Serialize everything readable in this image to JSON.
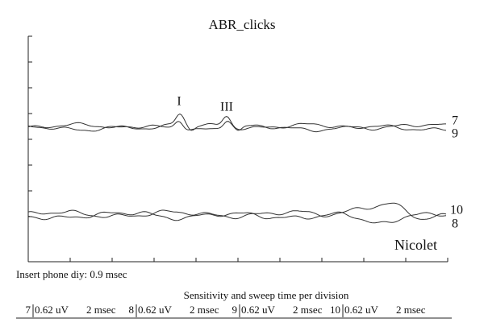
{
  "title": "ABR_clicks",
  "peaks": [
    "I",
    "III"
  ],
  "traces": {
    "upper": [
      "7",
      "9"
    ],
    "lower": [
      "10",
      "8"
    ]
  },
  "device": "Nicolet",
  "note": "Insert phone diy: 0.9 msec",
  "footer": {
    "heading": "Sensitivity and sweep time per division",
    "channels": [
      {
        "id": "7",
        "sensitivity": "0.62 uV",
        "sweep": "2 msec"
      },
      {
        "id": "8",
        "sensitivity": "0.62 uV",
        "sweep": "2 msec"
      },
      {
        "id": "9",
        "sensitivity": "0.62 uV",
        "sweep": "2 msec"
      },
      {
        "id": "10",
        "sensitivity": "0.62 uV",
        "sweep": "2 msec"
      }
    ]
  }
}
